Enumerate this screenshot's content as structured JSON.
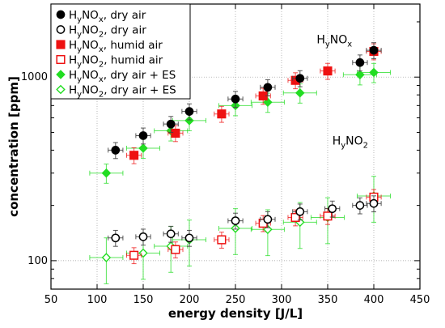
{
  "chart_data": {
    "type": "scatter",
    "xlabel": "energy density [J/L]",
    "ylabel": "concentration [ppm]",
    "xlim": [
      50,
      450
    ],
    "ylim": [
      70,
      2500
    ],
    "yscale": "log",
    "x_ticks": [
      50,
      100,
      150,
      200,
      250,
      300,
      350,
      400,
      450
    ],
    "y_ticks": [
      100,
      1000
    ],
    "grid": true,
    "legend_position": "top-left",
    "annotations": [
      {
        "text_main": "H",
        "text_sub": "y",
        "text_main2": "NO",
        "text_sub2": "x",
        "x": 338,
        "y": 1530
      },
      {
        "text_main": "H",
        "text_sub": "y",
        "text_main2": "NO",
        "text_sub2": "2",
        "x": 355,
        "y": 430
      }
    ],
    "series": [
      {
        "name_main": "H",
        "name_sub": "y",
        "name_main2": "NO",
        "name_sub2": "x",
        "name_rest": ", dry air",
        "color": "#000000",
        "marker": "circle",
        "filled": true,
        "x": [
          120,
          150,
          180,
          200,
          250,
          285,
          320,
          385,
          400
        ],
        "y": [
          400,
          480,
          555,
          650,
          760,
          880,
          985,
          1200,
          1400
        ],
        "xerr": 8,
        "yerr_frac": 0.1
      },
      {
        "name_main": "H",
        "name_sub": "y",
        "name_main2": "NO",
        "name_sub2": "2",
        "name_rest": ", dry air",
        "color": "#000000",
        "marker": "circle",
        "filled": false,
        "x": [
          120,
          150,
          180,
          200,
          250,
          285,
          320,
          355,
          385,
          400
        ],
        "y": [
          133,
          135,
          140,
          133,
          165,
          168,
          185,
          192,
          200,
          205
        ],
        "xerr": 8,
        "yerr_frac": 0.1
      },
      {
        "name_main": "H",
        "name_sub": "y",
        "name_main2": "NO",
        "name_sub2": "x",
        "name_rest": ", humid air",
        "color": "#ee1111",
        "marker": "square",
        "filled": true,
        "x": [
          140,
          185,
          235,
          280,
          315,
          350,
          400
        ],
        "y": [
          375,
          495,
          630,
          790,
          960,
          1080,
          1380
        ],
        "xerr": 8,
        "yerr_frac": 0.1
      },
      {
        "name_main": "H",
        "name_sub": "y",
        "name_main2": "NO",
        "name_sub2": "2",
        "name_rest": ", humid air",
        "color": "#ee1111",
        "marker": "square",
        "filled": false,
        "x": [
          140,
          185,
          235,
          280,
          315,
          350,
          400
        ],
        "y": [
          107,
          115,
          130,
          160,
          172,
          175,
          222
        ],
        "xerr": 8,
        "yerr_frac": 0.1
      },
      {
        "name_main": "H",
        "name_sub": "y",
        "name_main2": "NO",
        "name_sub2": "x",
        "name_rest": ", dry air + ES",
        "color": "#22dd22",
        "marker": "diamond",
        "filled": true,
        "x": [
          110,
          150,
          180,
          200,
          250,
          285,
          320,
          385,
          400
        ],
        "y": [
          300,
          410,
          510,
          580,
          700,
          730,
          820,
          1030,
          1060
        ],
        "xerr": 18,
        "yerr_frac": 0.12
      },
      {
        "name_main": "H",
        "name_sub": "y",
        "name_main2": "NO",
        "name_sub2": "2",
        "name_rest": ", dry air + ES",
        "color": "#22dd22",
        "marker": "diamond",
        "filled": false,
        "x": [
          110,
          150,
          180,
          200,
          250,
          285,
          320,
          350,
          400
        ],
        "y": [
          104,
          110,
          120,
          130,
          150,
          148,
          162,
          172,
          225
        ],
        "xerr": 18,
        "yerr_frac": 0.28
      }
    ]
  }
}
